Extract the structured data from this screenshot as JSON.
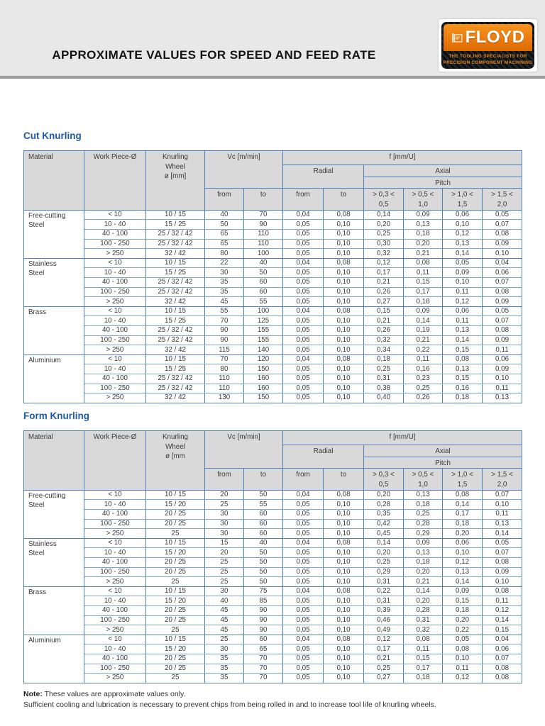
{
  "page": {
    "title": "APPROXIMATE VALUES FOR SPEED AND FEED RATE",
    "logo": {
      "brand": "FLOYD",
      "tagline_line1": "THE TOOLING SPECIALISTS FOR",
      "tagline_line2": "PRECISION COMPONENT MACHINING"
    },
    "note": {
      "label": "Note:",
      "line1": "These values are approximate values only.",
      "line2": "Sufficient cooling and lubrication is necessary to prevent chips from being rolled in and to increase tool life of knurling wheels."
    }
  },
  "colors": {
    "band_bg": "#e8e8e8",
    "divider_gray": "#9d9d9d",
    "table_border_blue": "#4f81bd",
    "row_line_blue": "#7ea6d6",
    "header_cell_bg": "#d9d9d9",
    "section_heading_blue": "#1f5aa8",
    "logo_orange": "#ea7c10",
    "logo_black": "#0b0f11",
    "text_dark": "#3a3a3a"
  },
  "tables": [
    {
      "id": "cut-knurling",
      "title": "Cut Knurling",
      "headers": {
        "material": [
          "Material"
        ],
        "work_piece": [
          "Work Piece-Ø"
        ],
        "knurling_wheel": [
          "Knurling",
          "Wheel",
          "ø [mm]"
        ],
        "vc": [
          "Vc [m/min]"
        ],
        "f": [
          "f [mm/U]"
        ],
        "radial": [
          "Radial"
        ],
        "axial": [
          "Axial"
        ],
        "pitch": [
          "Pitch"
        ],
        "from": [
          "from"
        ],
        "to": [
          "to"
        ],
        "pitch_ranges": [
          [
            "> 0,3 <",
            "0,5"
          ],
          [
            "> 0,5 <",
            "1,0"
          ],
          [
            "> 1,0 <",
            "1,5"
          ],
          [
            "> 1,5 <",
            "2,0"
          ]
        ]
      },
      "groups": [
        {
          "material": [
            "Free-cutting",
            "Steel"
          ],
          "rows": [
            [
              "< 10",
              "10 / 15",
              "40",
              "70",
              "0,04",
              "0,08",
              "0,14",
              "0,09",
              "0,06",
              "0,05"
            ],
            [
              "10 - 40",
              "15 / 25",
              "50",
              "90",
              "0,05",
              "0,10",
              "0,20",
              "0,13",
              "0,10",
              "0,07"
            ],
            [
              "40 - 100",
              "25 / 32 / 42",
              "65",
              "110",
              "0,05",
              "0,10",
              "0,25",
              "0,18",
              "0,12",
              "0,08"
            ],
            [
              "100 - 250",
              "25 / 32 / 42",
              "65",
              "110",
              "0,05",
              "0,10",
              "0,30",
              "0,20",
              "0,13",
              "0,09"
            ],
            [
              "> 250",
              "32 / 42",
              "80",
              "100",
              "0,05",
              "0,10",
              "0,32",
              "0,21",
              "0,14",
              "0,10"
            ]
          ]
        },
        {
          "material": [
            "Stainless",
            "Steel"
          ],
          "rows": [
            [
              "< 10",
              "10 / 15",
              "22",
              "40",
              "0,04",
              "0,08",
              "0,12",
              "0,08",
              "0,05",
              "0,04"
            ],
            [
              "10 - 40",
              "15 / 25",
              "30",
              "50",
              "0,05",
              "0,10",
              "0,17",
              "0,11",
              "0,09",
              "0,06"
            ],
            [
              "40 - 100",
              "25 / 32 / 42",
              "35",
              "60",
              "0,05",
              "0,10",
              "0,21",
              "0,15",
              "0,10",
              "0,07"
            ],
            [
              "100 - 250",
              "25 / 32 / 42",
              "35",
              "60",
              "0,05",
              "0,10",
              "0,26",
              "0,17",
              "0,11",
              "0,08"
            ],
            [
              "> 250",
              "32 / 42",
              "45",
              "55",
              "0,05",
              "0,10",
              "0,27",
              "0,18",
              "0,12",
              "0,09"
            ]
          ]
        },
        {
          "material": [
            "Brass"
          ],
          "rows": [
            [
              "< 10",
              "10 / 15",
              "55",
              "100",
              "0,04",
              "0,08",
              "0,15",
              "0,09",
              "0,06",
              "0,05"
            ],
            [
              "10 - 40",
              "15 / 25",
              "70",
              "125",
              "0,05",
              "0,10",
              "0,21",
              "0,14",
              "0,11",
              "0,07"
            ],
            [
              "40 - 100",
              "25 / 32 / 42",
              "90",
              "155",
              "0,05",
              "0,10",
              "0,26",
              "0,19",
              "0,13",
              "0,08"
            ],
            [
              "100 - 250",
              "25 / 32 / 42",
              "90",
              "155",
              "0,05",
              "0,10",
              "0,32",
              "0,21",
              "0,14",
              "0,09"
            ],
            [
              "> 250",
              "32 / 42",
              "115",
              "140",
              "0,05",
              "0,10",
              "0,34",
              "0,22",
              "0,15",
              "0,11"
            ]
          ]
        },
        {
          "material": [
            "Aluminium"
          ],
          "rows": [
            [
              "< 10",
              "10 / 15",
              "70",
              "120",
              "0,04",
              "0,08",
              "0,18",
              "0,11",
              "0,08",
              "0,06"
            ],
            [
              "10 - 40",
              "15 / 25",
              "80",
              "150",
              "0,05",
              "0,10",
              "0,25",
              "0,16",
              "0,13",
              "0,09"
            ],
            [
              "40 - 100",
              "25 / 32 / 42",
              "110",
              "160",
              "0,05",
              "0,10",
              "0,31",
              "0,23",
              "0,15",
              "0,10"
            ],
            [
              "100 - 250",
              "25 / 32 / 42",
              "110",
              "160",
              "0,05",
              "0,10",
              "0,38",
              "0,25",
              "0,16",
              "0,11"
            ],
            [
              "> 250",
              "32 / 42",
              "130",
              "150",
              "0,05",
              "0,10",
              "0,40",
              "0,26",
              "0,18",
              "0,13"
            ]
          ]
        }
      ]
    },
    {
      "id": "form-knurling",
      "title": "Form Knurling",
      "headers": {
        "material": [
          "Material"
        ],
        "work_piece": [
          "Work Piece-Ø"
        ],
        "knurling_wheel": [
          "Knurling",
          "Wheel",
          "ø [mm"
        ],
        "vc": [
          "Vc [m/min]"
        ],
        "f": [
          "f [mm/U]"
        ],
        "radial": [
          "Radial"
        ],
        "axial": [
          "Axial"
        ],
        "pitch": [
          "Pitch"
        ],
        "from": [
          "from"
        ],
        "to": [
          "to"
        ],
        "pitch_ranges": [
          [
            "> 0,3 <",
            "0,5"
          ],
          [
            "> 0,5 <",
            "1,0"
          ],
          [
            "> 1,0 <",
            "1,5"
          ],
          [
            "> 1,5 <",
            "2,0"
          ]
        ]
      },
      "groups": [
        {
          "material": [
            "Free-cutting",
            "Steel"
          ],
          "rows": [
            [
              "< 10",
              "10 / 15",
              "20",
              "50",
              "0,04",
              "0,08",
              "0,20",
              "0,13",
              "0,08",
              "0,07"
            ],
            [
              "10 - 40",
              "15 / 20",
              "25",
              "55",
              "0,05",
              "0,10",
              "0,28",
              "0,18",
              "0,14",
              "0,10"
            ],
            [
              "40 - 100",
              "20 / 25",
              "30",
              "60",
              "0,05",
              "0,10",
              "0,35",
              "0,25",
              "0,17",
              "0,11"
            ],
            [
              "100 - 250",
              "20 / 25",
              "30",
              "60",
              "0,05",
              "0,10",
              "0,42",
              "0,28",
              "0,18",
              "0,13"
            ],
            [
              "> 250",
              "25",
              "30",
              "60",
              "0,05",
              "0,10",
              "0,45",
              "0,29",
              "0,20",
              "0,14"
            ]
          ]
        },
        {
          "material": [
            "Stainless",
            "Steel"
          ],
          "rows": [
            [
              "< 10",
              "10 / 15",
              "15",
              "40",
              "0,04",
              "0,08",
              "0,14",
              "0,09",
              "0,06",
              "0,05"
            ],
            [
              "10 - 40",
              "15 / 20",
              "20",
              "50",
              "0,05",
              "0,10",
              "0,20",
              "0,13",
              "0,10",
              "0,07"
            ],
            [
              "40 - 100",
              "20 / 25",
              "25",
              "50",
              "0,05",
              "0,10",
              "0,25",
              "0,18",
              "0,12",
              "0,08"
            ],
            [
              "100 - 250",
              "20 / 25",
              "25",
              "50",
              "0,05",
              "0,10",
              "0,29",
              "0,20",
              "0,13",
              "0,09"
            ],
            [
              "> 250",
              "25",
              "25",
              "50",
              "0,05",
              "0,10",
              "0,31",
              "0,21",
              "0,14",
              "0,10"
            ]
          ]
        },
        {
          "material": [
            "Brass"
          ],
          "rows": [
            [
              "< 10",
              "10 / 15",
              "30",
              "75",
              "0,04",
              "0,08",
              "0,22",
              "0,14",
              "0,09",
              "0,08"
            ],
            [
              "10 - 40",
              "15 / 20",
              "40",
              "85",
              "0,05",
              "0,10",
              "0,31",
              "0,20",
              "0,15",
              "0,11"
            ],
            [
              "40 - 100",
              "20 / 25",
              "45",
              "90",
              "0,05",
              "0,10",
              "0,39",
              "0,28",
              "0,18",
              "0,12"
            ],
            [
              "100 - 250",
              "20 / 25",
              "45",
              "90",
              "0,05",
              "0,10",
              "0,46",
              "0,31",
              "0,20",
              "0,14"
            ],
            [
              "> 250",
              "25",
              "45",
              "90",
              "0,05",
              "0,10",
              "0,49",
              "0,32",
              "0,22",
              "0,15"
            ]
          ]
        },
        {
          "material": [
            "Aluminium"
          ],
          "rows": [
            [
              "< 10",
              "10 / 15",
              "25",
              "60",
              "0,04",
              "0,08",
              "0,12",
              "0,08",
              "0,05",
              "0,04"
            ],
            [
              "10 - 40",
              "15 / 20",
              "30",
              "65",
              "0,05",
              "0,10",
              "0,17",
              "0,11",
              "0,08",
              "0,06"
            ],
            [
              "40 - 100",
              "20 / 25",
              "35",
              "70",
              "0,05",
              "0,10",
              "0,21",
              "0,15",
              "0,10",
              "0,07"
            ],
            [
              "100 - 250",
              "20 / 25",
              "35",
              "70",
              "0,05",
              "0,10",
              "0,25",
              "0,17",
              "0,11",
              "0,08"
            ],
            [
              "> 250",
              "25",
              "35",
              "70",
              "0,05",
              "0,10",
              "0,27",
              "0,18",
              "0,12",
              "0,08"
            ]
          ]
        }
      ]
    }
  ]
}
